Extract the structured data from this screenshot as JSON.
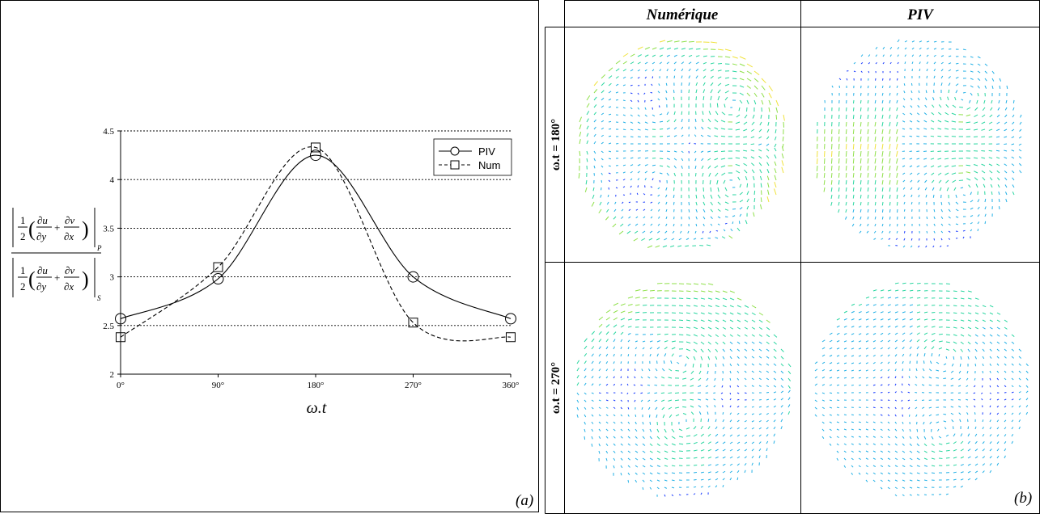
{
  "chart_data": {
    "type": "line",
    "xlabel": "ω.t",
    "categories": [
      "0°",
      "90°",
      "180°",
      "270°",
      "360°"
    ],
    "x": [
      0,
      90,
      180,
      270,
      360
    ],
    "ylim": [
      2,
      4.5
    ],
    "yticks": [
      "2",
      "2.5",
      "3",
      "3.5",
      "4",
      "4.5"
    ],
    "ytick_values": [
      2,
      2.5,
      3,
      3.5,
      4,
      4.5
    ],
    "grid": "horizontal dotted",
    "legend_position": "top-right",
    "series": [
      {
        "name": "PIV",
        "values": [
          2.57,
          2.98,
          4.25,
          3.0,
          2.57
        ],
        "marker": "circle",
        "line": "solid",
        "color": "#000000"
      },
      {
        "name": "Num",
        "values": [
          2.38,
          3.1,
          4.33,
          2.53,
          2.38
        ],
        "marker": "square",
        "line": "dashed",
        "color": "#000000"
      }
    ],
    "ylabel_formula": {
      "numerator_subscript": "P",
      "denominator_subscript": "S"
    },
    "panel_label": "(a)"
  },
  "figure_b": {
    "col_headers": [
      "Numérique",
      "PIV"
    ],
    "row_headers": [
      "ω.t = 180°",
      "ω.t = 270°"
    ],
    "panel_label": "(b)",
    "colormap": [
      "#1a3cff",
      "#22b0e6",
      "#2ad6a0",
      "#8fe04a",
      "#f0e23a",
      "#ff9a2a",
      "#e62020"
    ]
  }
}
